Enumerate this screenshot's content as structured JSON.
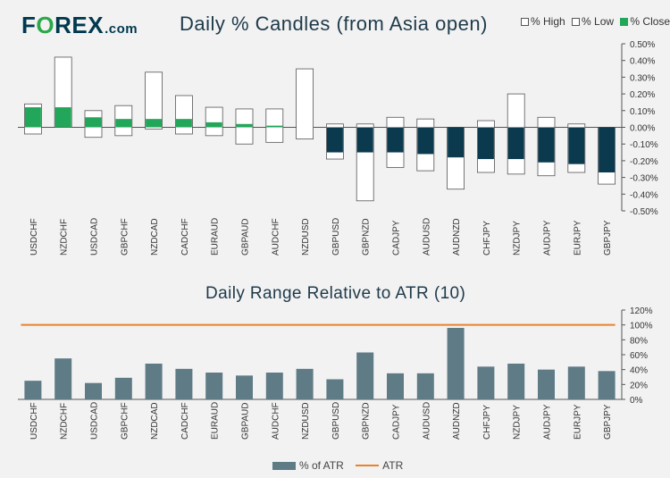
{
  "logo": {
    "part1": "F",
    "part2": "O",
    "part3": "REX",
    "part4": ".com"
  },
  "colors": {
    "high_low_fill": "#ffffff",
    "close_positive": "#22a65a",
    "close_negative": "#0b3a4e",
    "atr_bar": "#5f7b86",
    "atr_line": "#e8822b",
    "axis": "#555555"
  },
  "chart_data": [
    {
      "type": "bar",
      "title": "Daily % Candles (from Asia open)",
      "categories": [
        "USDCHF",
        "NZDCHF",
        "USDCAD",
        "GBPCHF",
        "NZDCAD",
        "CADCHF",
        "EURAUD",
        "GBPAUD",
        "AUDCHF",
        "NZDUSD",
        "GBPUSD",
        "GBPNZD",
        "CADJPY",
        "AUDUSD",
        "AUDNZD",
        "CHFJPY",
        "NZDJPY",
        "AUDJPY",
        "EURJPY",
        "GBPJPY"
      ],
      "series": [
        {
          "name": "% High",
          "values": [
            0.14,
            0.42,
            0.1,
            0.13,
            0.33,
            0.19,
            0.12,
            0.11,
            0.11,
            0.35,
            0.02,
            0.02,
            0.06,
            0.05,
            0.0,
            0.04,
            0.2,
            0.06,
            0.02,
            0.0
          ]
        },
        {
          "name": "% Low",
          "values": [
            -0.04,
            0.0,
            -0.06,
            -0.05,
            -0.01,
            -0.04,
            -0.05,
            -0.1,
            -0.09,
            -0.07,
            -0.19,
            -0.44,
            -0.24,
            -0.26,
            -0.37,
            -0.27,
            -0.28,
            -0.29,
            -0.27,
            -0.34
          ]
        },
        {
          "name": "% Close",
          "values": [
            0.12,
            0.12,
            0.06,
            0.05,
            0.05,
            0.05,
            0.03,
            0.02,
            0.01,
            0.0,
            -0.15,
            -0.15,
            -0.15,
            -0.16,
            -0.18,
            -0.19,
            -0.19,
            -0.21,
            -0.22,
            -0.27
          ]
        }
      ],
      "ylim": [
        -0.5,
        0.5
      ],
      "y_ticks": [
        "0.50%",
        "0.40%",
        "0.30%",
        "0.20%",
        "0.10%",
        "0.00%",
        "-0.10%",
        "-0.20%",
        "-0.30%",
        "-0.40%",
        "-0.50%"
      ],
      "legend": "top-right",
      "grid": false
    },
    {
      "type": "bar",
      "title": "Daily Range Relative to ATR (10)",
      "categories": [
        "USDCHF",
        "NZDCHF",
        "USDCAD",
        "GBPCHF",
        "NZDCAD",
        "CADCHF",
        "EURAUD",
        "GBPAUD",
        "AUDCHF",
        "NZDUSD",
        "GBPUSD",
        "GBPNZD",
        "CADJPY",
        "AUDUSD",
        "AUDNZD",
        "CHFJPY",
        "NZDJPY",
        "AUDJPY",
        "EURJPY",
        "GBPJPY"
      ],
      "series": [
        {
          "name": "% of ATR",
          "values": [
            25,
            55,
            22,
            29,
            48,
            41,
            36,
            32,
            36,
            41,
            27,
            63,
            35,
            35,
            96,
            44,
            48,
            40,
            44,
            38
          ]
        },
        {
          "name": "ATR",
          "values": [
            100,
            100,
            100,
            100,
            100,
            100,
            100,
            100,
            100,
            100,
            100,
            100,
            100,
            100,
            100,
            100,
            100,
            100,
            100,
            100
          ]
        }
      ],
      "ylim": [
        0,
        120
      ],
      "y_ticks": [
        "120%",
        "100%",
        "80%",
        "60%",
        "40%",
        "20%",
        "0%"
      ],
      "legend": "bottom",
      "grid": false
    }
  ]
}
